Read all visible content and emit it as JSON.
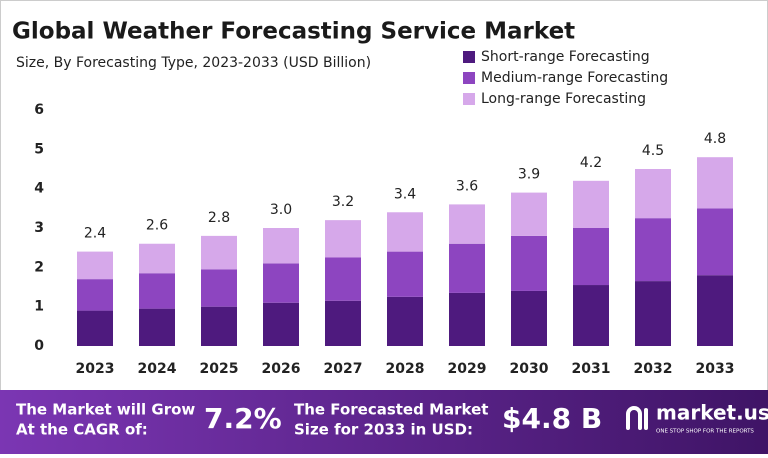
{
  "chart_data": {
    "type": "stacked_bar",
    "title": "Global Weather Forecasting Service Market",
    "subtitle": "Size, By Forecasting Type, 2023-2033  (USD Billion)",
    "categories": [
      "2023",
      "2024",
      "2025",
      "2026",
      "2027",
      "2028",
      "2029",
      "2030",
      "2031",
      "2032",
      "2033"
    ],
    "series": [
      {
        "name": "Short-range Forecasting",
        "color": "#4e1a7e",
        "values": [
          0.9,
          0.95,
          1.0,
          1.1,
          1.15,
          1.25,
          1.35,
          1.4,
          1.55,
          1.65,
          1.8
        ]
      },
      {
        "name": "Medium-range Forecasting",
        "color": "#8d45c0",
        "values": [
          0.8,
          0.9,
          0.95,
          1.0,
          1.1,
          1.15,
          1.25,
          1.4,
          1.45,
          1.6,
          1.7
        ]
      },
      {
        "name": "Long-range Forecasting",
        "color": "#d6a8ea",
        "values": [
          0.7,
          0.75,
          0.85,
          0.9,
          0.95,
          1.0,
          1.0,
          1.1,
          1.2,
          1.25,
          1.3
        ]
      }
    ],
    "totals": [
      2.4,
      2.6,
      2.8,
      3.0,
      3.2,
      3.4,
      3.6,
      3.9,
      4.2,
      4.5,
      4.8
    ],
    "total_labels": [
      "2.4",
      "2.6",
      "2.8",
      "3.0",
      "3.2",
      "3.4",
      "3.6",
      "3.9",
      "4.2",
      "4.5",
      "4.8"
    ],
    "ylim": [
      0,
      6
    ],
    "yticks": [
      0,
      1,
      2,
      3,
      4,
      5,
      6
    ],
    "grid": false,
    "legend": "top-right"
  },
  "footer": {
    "cagr_text": [
      "The Market will Grow",
      "At the CAGR of:"
    ],
    "cagr_value": "7.2%",
    "size_text": [
      "The Forecasted Market",
      "Size for 2033 in USD:"
    ],
    "size_value": "$4.8 B",
    "brand": "market.us",
    "tagline": "ONE STOP SHOP FOR THE REPORTS"
  }
}
